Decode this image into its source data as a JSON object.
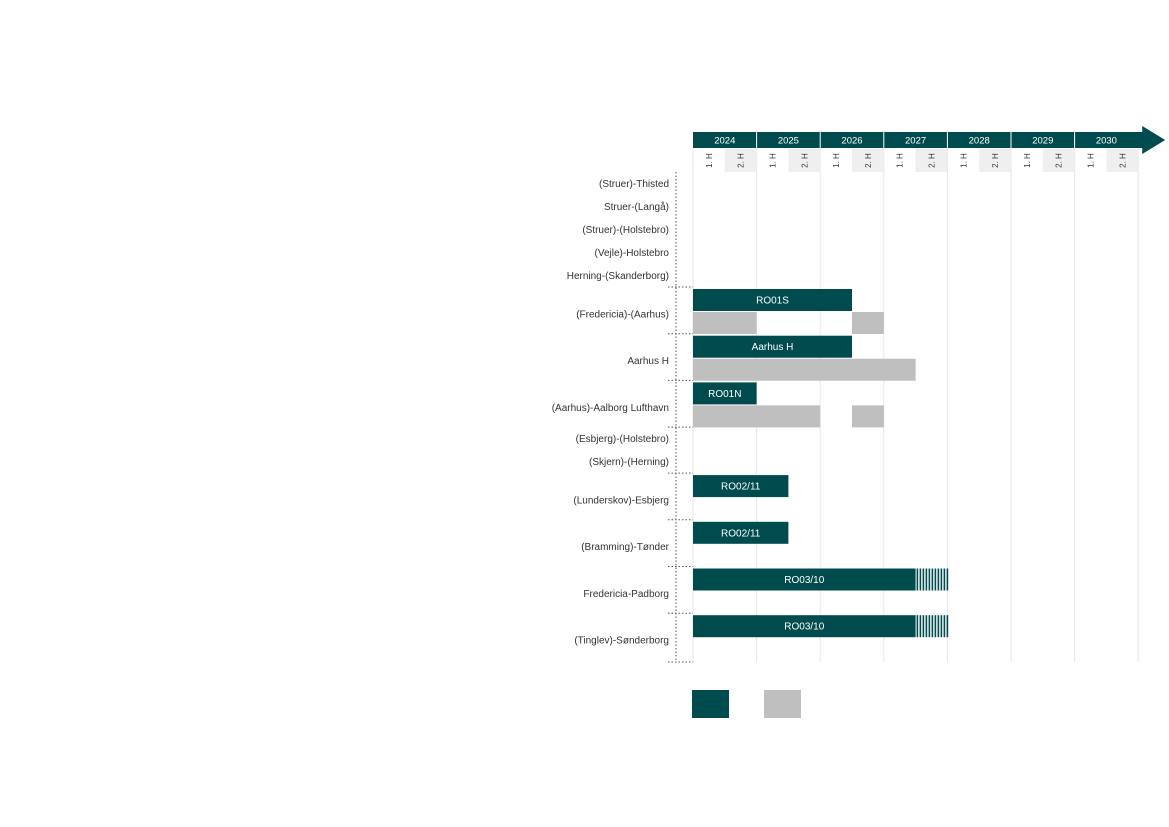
{
  "chart_data": {
    "type": "gantt",
    "title": "",
    "colors": {
      "primary": "#004b4e",
      "secondary": "#bfbfbf"
    },
    "years": [
      "2024",
      "2025",
      "2026",
      "2027",
      "2028",
      "2029",
      "2030"
    ],
    "halves": [
      "1. H",
      "2. H"
    ],
    "rows": [
      {
        "label": "(Struer)-Thisted",
        "bars": []
      },
      {
        "label": "Struer-(Langå)",
        "bars": []
      },
      {
        "label": "(Struer)-(Holstebro)",
        "bars": []
      },
      {
        "label": "(Vejle)-Holstebro",
        "bars": []
      },
      {
        "label": "Herning-(Skanderborg)",
        "bars": []
      },
      {
        "label": "(Fredericia)-(Aarhus)",
        "bars": [
          {
            "start": 2024.0,
            "end": 2026.5,
            "series": "primary",
            "label": "RO01S"
          },
          {
            "start": 2024.0,
            "end": 2025.0,
            "series": "secondary",
            "sub": 1
          },
          {
            "start": 2026.5,
            "end": 2027.0,
            "series": "secondary",
            "sub": 1
          }
        ]
      },
      {
        "label": "Aarhus H",
        "bars": [
          {
            "start": 2024.0,
            "end": 2026.5,
            "series": "primary",
            "label": "Aarhus H"
          },
          {
            "start": 2024.0,
            "end": 2027.5,
            "series": "secondary",
            "sub": 1
          }
        ]
      },
      {
        "label": "(Aarhus)-Aalborg Lufthavn",
        "bars": [
          {
            "start": 2024.0,
            "end": 2025.0,
            "series": "primary",
            "label": "RO01N"
          },
          {
            "start": 2024.0,
            "end": 2026.0,
            "series": "secondary",
            "sub": 1
          },
          {
            "start": 2026.5,
            "end": 2027.0,
            "series": "secondary",
            "sub": 1
          }
        ]
      },
      {
        "label": "(Esbjerg)-(Holstebro)",
        "bars": []
      },
      {
        "label": "(Skjern)-(Herning)",
        "bars": []
      },
      {
        "label": "(Lunderskov)-Esbjerg",
        "bars": [
          {
            "start": 2024.0,
            "end": 2025.5,
            "series": "primary",
            "label": "RO02/11"
          }
        ]
      },
      {
        "label": "(Bramming)-Tønder",
        "bars": [
          {
            "start": 2024.0,
            "end": 2025.5,
            "series": "primary",
            "label": "RO02/11"
          }
        ]
      },
      {
        "label": "Fredericia-Padborg",
        "bars": [
          {
            "start": 2024.0,
            "end": 2027.5,
            "series": "primary",
            "label": "RO03/10",
            "hatch_end": 2028.0
          }
        ]
      },
      {
        "label": "(Tinglev)-Sønderborg",
        "bars": [
          {
            "start": 2024.0,
            "end": 2027.5,
            "series": "primary",
            "label": "RO03/10",
            "hatch_end": 2028.0
          }
        ]
      }
    ],
    "legend": [
      {
        "series": "primary",
        "label": ""
      },
      {
        "series": "secondary",
        "label": ""
      }
    ]
  }
}
